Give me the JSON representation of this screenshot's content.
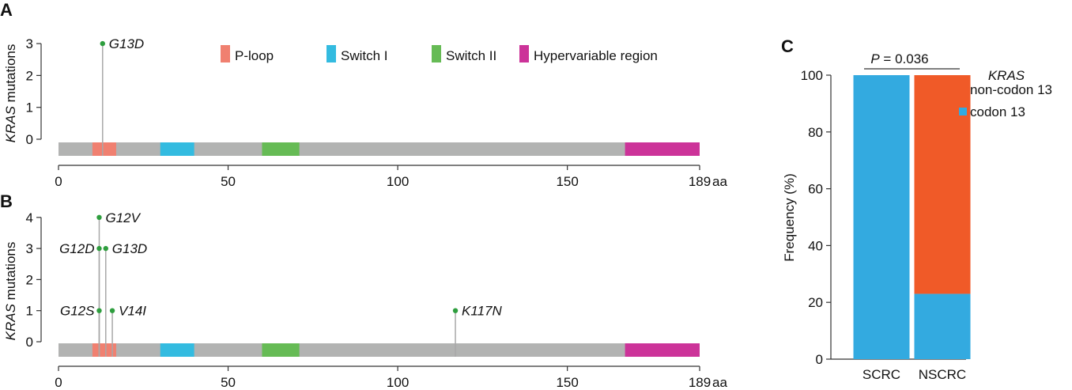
{
  "panels": {
    "A": {
      "letter": "A",
      "ylabel_gene": "KRAS",
      "ylabel_rest": " mutations",
      "y_ticks": [
        "0",
        "1",
        "2",
        "3"
      ],
      "x_ticks": [
        "0",
        "50",
        "100",
        "150",
        "189"
      ],
      "x_unit": "aa"
    },
    "B": {
      "letter": "B",
      "ylabel_gene": "KRAS",
      "ylabel_rest": " mutations",
      "y_ticks": [
        "0",
        "1",
        "2",
        "3",
        "4"
      ],
      "x_ticks": [
        "0",
        "50",
        "100",
        "150",
        "189"
      ],
      "x_unit": "aa"
    },
    "C": {
      "letter": "C",
      "p_value_label": "P",
      "p_value_text": " = 0.036",
      "legend_title": "KRAS",
      "ylabel": "Frequency (%)",
      "y_ticks": [
        "0",
        "20",
        "40",
        "60",
        "80",
        "100"
      ]
    }
  },
  "domain_legend": [
    {
      "label": "P-loop",
      "color": "#f08070"
    },
    {
      "label": "Switch I",
      "color": "#33bbe0"
    },
    {
      "label": "Switch II",
      "color": "#66bb55"
    },
    {
      "label": "Hypervariable region",
      "color": "#cc3399"
    }
  ],
  "chart_data": [
    {
      "type": "scatter",
      "id": "A",
      "xlim": [
        0,
        189
      ],
      "ylim": [
        0,
        3
      ],
      "protein_length": 189,
      "domains": [
        {
          "name": "P-loop",
          "start": 10,
          "end": 17,
          "color": "#f08070"
        },
        {
          "name": "Switch I",
          "start": 30,
          "end": 40,
          "color": "#33bbe0"
        },
        {
          "name": "Switch II",
          "start": 60,
          "end": 71,
          "color": "#66bb55"
        },
        {
          "name": "Hypervariable region",
          "start": 167,
          "end": 189,
          "color": "#cc3399"
        }
      ],
      "mutations": [
        {
          "label": "G13D",
          "position": 13,
          "count": 3
        }
      ]
    },
    {
      "type": "scatter",
      "id": "B",
      "xlim": [
        0,
        189
      ],
      "ylim": [
        0,
        4
      ],
      "protein_length": 189,
      "domains": [
        {
          "name": "P-loop",
          "start": 10,
          "end": 17,
          "color": "#f08070"
        },
        {
          "name": "Switch I",
          "start": 30,
          "end": 40,
          "color": "#33bbe0"
        },
        {
          "name": "Switch II",
          "start": 60,
          "end": 71,
          "color": "#66bb55"
        },
        {
          "name": "Hypervariable region",
          "start": 167,
          "end": 189,
          "color": "#cc3399"
        }
      ],
      "mutations": [
        {
          "label": "G12V",
          "position": 12,
          "count": 4
        },
        {
          "label": "G12D",
          "position": 12,
          "count": 3
        },
        {
          "label": "G13D",
          "position": 13,
          "count": 3
        },
        {
          "label": "G12S",
          "position": 12,
          "count": 1
        },
        {
          "label": "V14I",
          "position": 14,
          "count": 1
        },
        {
          "label": "K117N",
          "position": 117,
          "count": 1
        }
      ]
    },
    {
      "type": "bar",
      "id": "C",
      "stacked": true,
      "categories": [
        "SCRC",
        "NSCRC"
      ],
      "ylabel": "Frequency (%)",
      "ylim": [
        0,
        100
      ],
      "series": [
        {
          "name": "codon 13",
          "values": [
            100,
            23
          ],
          "color": "#33aae0"
        },
        {
          "name": "non-codon 13",
          "values": [
            0,
            77
          ],
          "color": "#f05a28"
        }
      ],
      "legend_order": [
        "non-codon 13",
        "codon 13"
      ]
    }
  ]
}
